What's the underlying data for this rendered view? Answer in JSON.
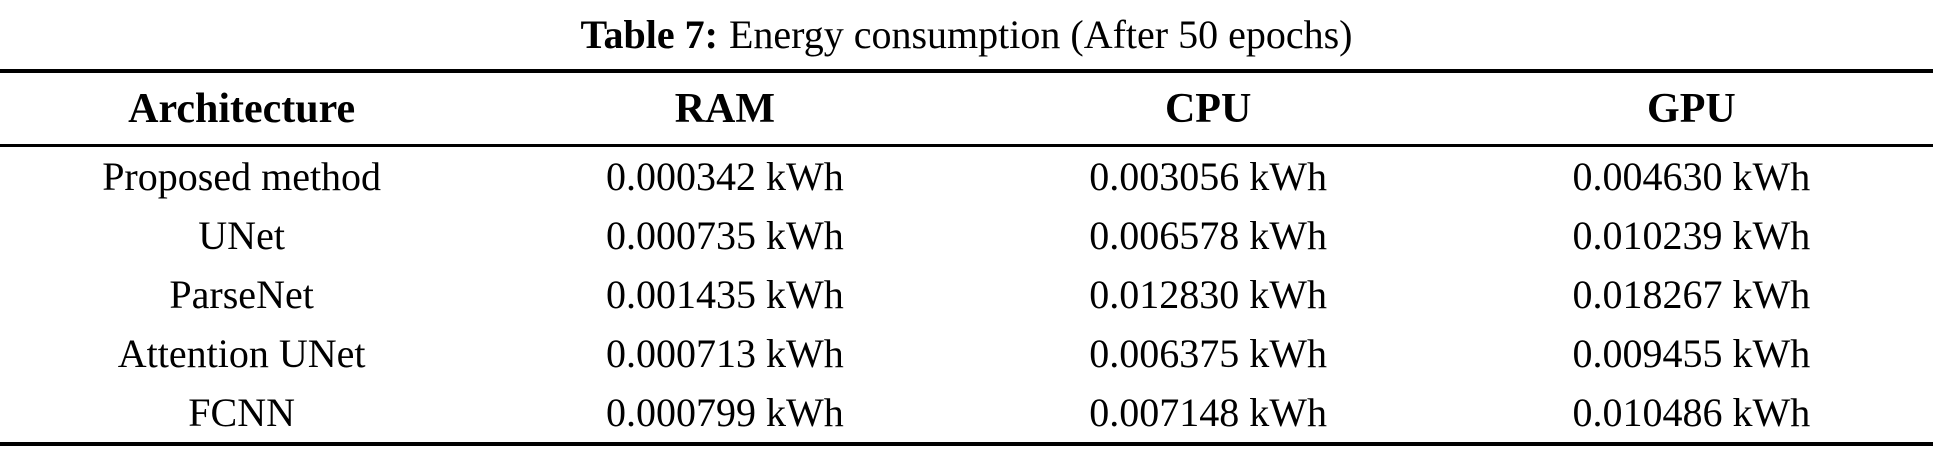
{
  "caption": {
    "label": "Table 7:",
    "text": "Energy consumption (After 50 epochs)"
  },
  "table": {
    "columns": [
      "Architecture",
      "RAM",
      "CPU",
      "GPU"
    ],
    "rows": [
      {
        "architecture": "Proposed method",
        "ram": "0.000342 kWh",
        "cpu": "0.003056 kWh",
        "gpu": "0.004630 kWh"
      },
      {
        "architecture": "UNet",
        "ram": "0.000735 kWh",
        "cpu": "0.006578 kWh",
        "gpu": "0.010239 kWh"
      },
      {
        "architecture": "ParseNet",
        "ram": "0.001435 kWh",
        "cpu": "0.012830 kWh",
        "gpu": "0.018267 kWh"
      },
      {
        "architecture": "Attention UNet",
        "ram": "0.000713 kWh",
        "cpu": "0.006375 kWh",
        "gpu": "0.009455 kWh"
      },
      {
        "architecture": "FCNN",
        "ram": "0.000799 kWh",
        "cpu": "0.007148 kWh",
        "gpu": "0.010486 kWh"
      }
    ]
  },
  "chart_data": {
    "type": "table",
    "title": "Table 7: Energy consumption (After 50 epochs)",
    "columns": [
      "Architecture",
      "RAM",
      "CPU",
      "GPU"
    ],
    "rows": [
      [
        "Proposed method",
        "0.000342 kWh",
        "0.003056 kWh",
        "0.004630 kWh"
      ],
      [
        "UNet",
        "0.000735 kWh",
        "0.006578 kWh",
        "0.010239 kWh"
      ],
      [
        "ParseNet",
        "0.001435 kWh",
        "0.012830 kWh",
        "0.018267 kWh"
      ],
      [
        "Attention UNet",
        "0.000713 kWh",
        "0.006375 kWh",
        "0.009455 kWh"
      ],
      [
        "FCNN",
        "0.000799 kWh",
        "0.007148 kWh",
        "0.010486 kWh"
      ]
    ]
  },
  "colors": {
    "text": "#000000",
    "background": "#ffffff",
    "rule": "#000000"
  }
}
